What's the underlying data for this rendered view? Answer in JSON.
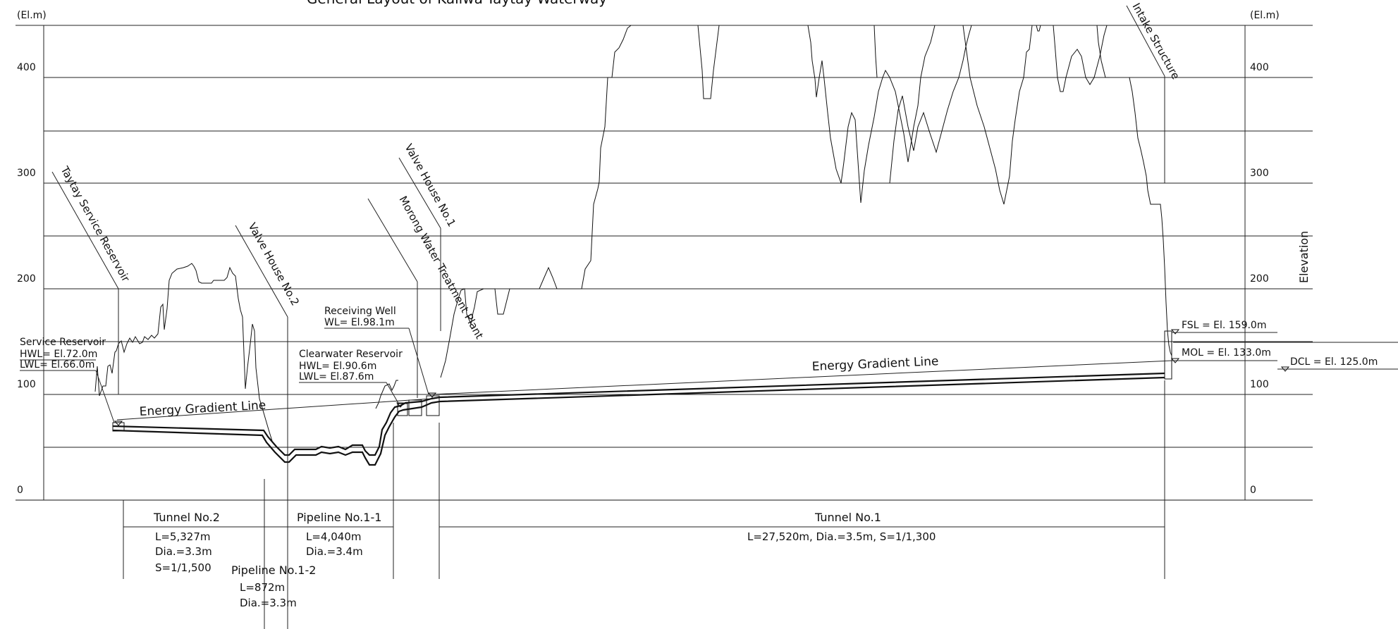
{
  "title": "General Layout of Kaliwa-Taytay Waterway",
  "axis": {
    "left_unit": "(El.m)",
    "right_unit": "(El.m)",
    "right_title": "Elevation",
    "ticks": [
      "400",
      "300",
      "200",
      "100",
      "0"
    ]
  },
  "structures": {
    "taytay": "Taytay Service Reservoir",
    "valve2": "Valve House No.2",
    "morong": "Morong Water Treatment Plant",
    "valve1": "Valve House No.1",
    "intake": "Intake Structure"
  },
  "service_reservoir": {
    "name": "Service Reservoir",
    "hwl": "HWL= El.72.0m",
    "lwl": "LWL= El.66.0m"
  },
  "clearwater_reservoir": {
    "name": "Clearwater Reservoir",
    "hwl": "HWL= El.90.6m",
    "lwl": "LWL= El.87.6m"
  },
  "receiving_well": {
    "name": "Receiving Well",
    "wl": "WL= El.98.1m"
  },
  "egl_label": "Energy Gradient Line",
  "intake_levels": {
    "fsl": "FSL = El. 159.0m",
    "mol": "MOL = El. 133.0m",
    "dcl": "DCL = El. 125.0m"
  },
  "segments": {
    "tunnel2": {
      "name": "Tunnel No.2",
      "l": "L=5,327m",
      "dia": "Dia.=3.3m",
      "s": "S=1/1,500"
    },
    "pipeline11": {
      "name": "Pipeline No.1-1",
      "l": "L=4,040m",
      "dia": "Dia.=3.4m"
    },
    "pipeline12": {
      "name": "Pipeline No.1-2",
      "l": "L=872m",
      "dia": "Dia.=3.3m"
    },
    "tunnel1": {
      "name": "Tunnel No.1",
      "spec": "L=27,520m, Dia.=3.5m, S=1/1,300"
    }
  }
}
